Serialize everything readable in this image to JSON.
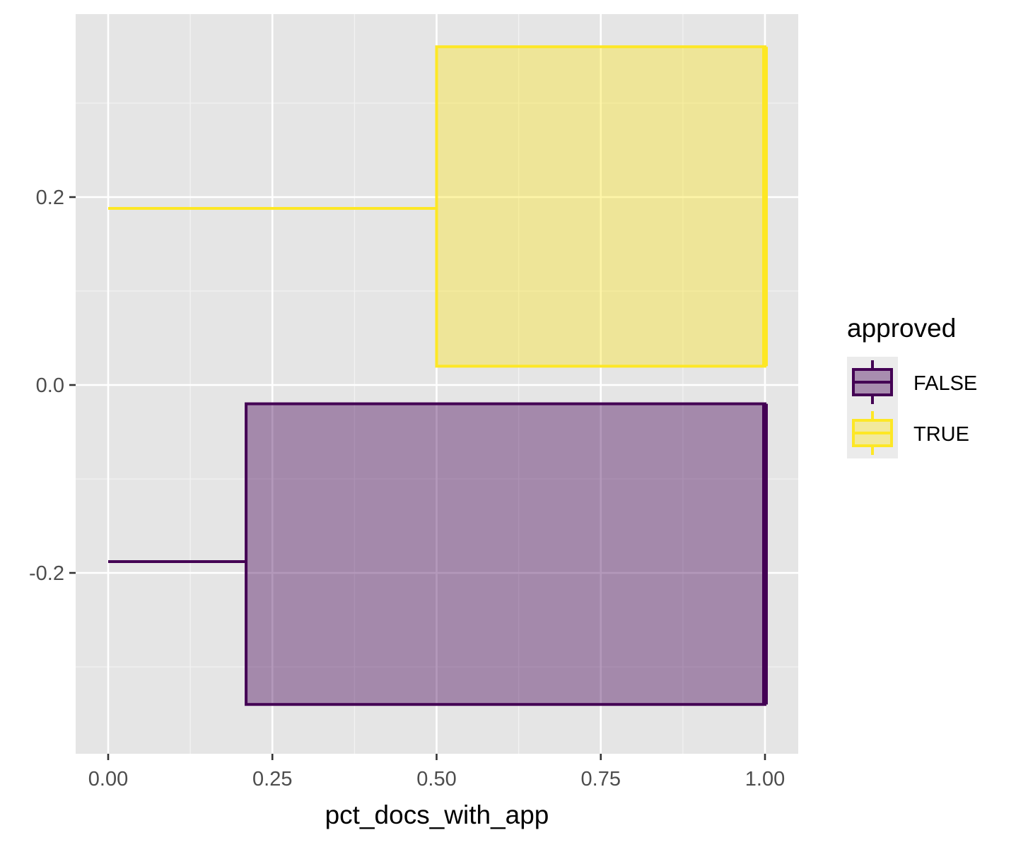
{
  "chart_data": {
    "type": "boxplot",
    "orientation": "horizontal",
    "xlabel": "pct_docs_with_app",
    "ylabel": "",
    "xlim": [
      -0.05,
      1.05
    ],
    "ylim": [
      -0.39,
      0.39
    ],
    "x_ticks": [
      0.0,
      0.25,
      0.5,
      0.75,
      1.0
    ],
    "x_tick_labels": [
      "0.00",
      "0.25",
      "0.50",
      "0.75",
      "1.00"
    ],
    "y_ticks": [
      -0.2,
      0.0,
      0.2
    ],
    "y_tick_labels": [
      "-0.2",
      "0.0",
      "0.2"
    ],
    "grid": true,
    "legend": {
      "title": "approved",
      "position": "right",
      "entries": [
        "FALSE",
        "TRUE"
      ]
    },
    "series": [
      {
        "name": "FALSE",
        "color": "#440154",
        "fill": "#440154",
        "fill_opacity": 0.4,
        "min": 0.0,
        "q1": 0.21,
        "median": 1.0,
        "q3": 1.0,
        "max": 1.0,
        "box_y": [
          -0.34,
          -0.02
        ],
        "whisker_y": -0.188
      },
      {
        "name": "TRUE",
        "color": "#FDE725",
        "fill": "#FDE725",
        "fill_opacity": 0.4,
        "min": 0.0,
        "q1": 0.5,
        "median": 1.0,
        "q3": 1.0,
        "max": 1.0,
        "box_y": [
          0.02,
          0.36
        ],
        "whisker_y": 0.188
      }
    ]
  }
}
